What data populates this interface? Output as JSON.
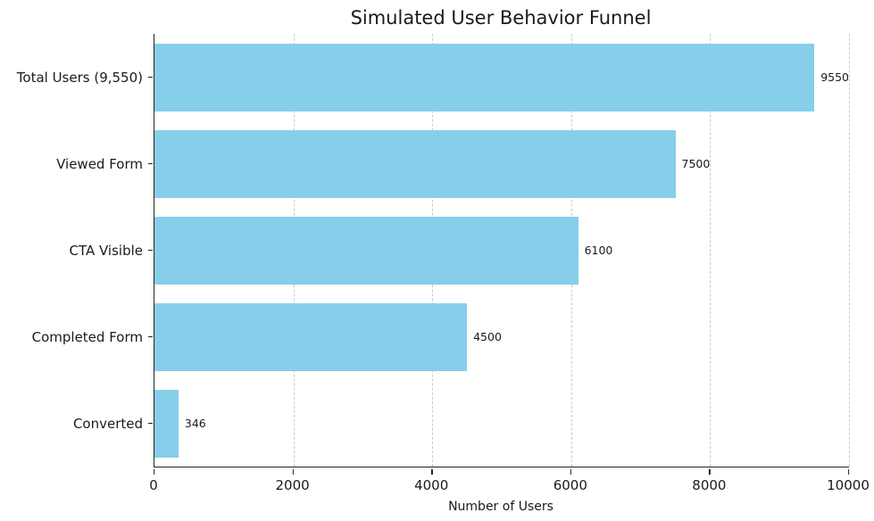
{
  "chart_data": {
    "type": "bar",
    "orientation": "horizontal",
    "title": "Simulated User Behavior Funnel",
    "xlabel": "Number of Users",
    "ylabel": "",
    "categories": [
      "Total Users (9,550)",
      "Viewed Form",
      "CTA Visible",
      "Completed Form",
      "Converted"
    ],
    "values": [
      9550,
      7500,
      6100,
      4500,
      346
    ],
    "value_labels": [
      "9550",
      "7500",
      "6100",
      "4500",
      "346"
    ],
    "xlim": [
      0,
      10000
    ],
    "xticks": [
      0,
      2000,
      4000,
      6000,
      8000,
      10000
    ],
    "grid": "dashed-vertical",
    "legend": "none",
    "bar_color": "#87CEEB",
    "axis_color": "#222222",
    "grid_color": "#c9c9c9",
    "text_color": "#1a1a1a"
  }
}
